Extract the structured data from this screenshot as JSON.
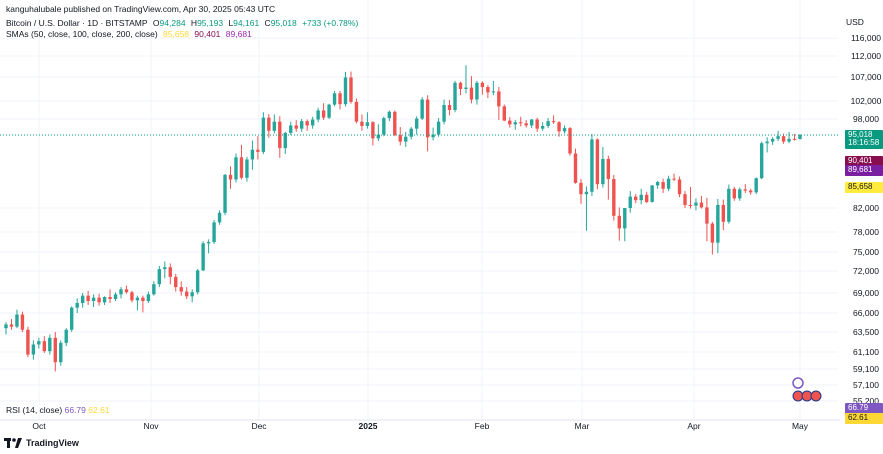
{
  "header": {
    "publisher_line": "kanguhalubale published on TradingView.com, Apr 30, 2025 05:43 UTC"
  },
  "legend": {
    "symbol_label": "Bitcoin / U.S. Dollar · 1D · BITSTAMP",
    "open_label": "O",
    "open_value": "94,284",
    "high_label": "H",
    "high_value": "95,193",
    "low_label": "L",
    "low_value": "94,161",
    "close_label": "C",
    "close_value": "95,018",
    "change": "+733 (+0.78%)",
    "sma_label": "SMAs (50, close, 100, close, 200, close)",
    "sma50_value": "85,658",
    "sma100_value": "90,401",
    "sma200_value": "89,681"
  },
  "rsi": {
    "label": "RSI (14, close)",
    "value1": "66.79",
    "value2": "62.61"
  },
  "axis": {
    "currency": "USD"
  },
  "price_badges": {
    "last_price": "95,018",
    "countdown": "18:16:58",
    "sma100": "90,401",
    "sma200": "89,681",
    "sma50": "85,658",
    "rsi1": "66.79",
    "rsi2": "62.61"
  },
  "footer": {
    "brand": "TradingView"
  },
  "colors": {
    "up": "#26a69a",
    "down": "#ef5350",
    "last_price_bg": "#089981",
    "sma100_bg": "#880e4f",
    "sma200_bg": "#7b1fa2",
    "sma50_bg": "#ffeb3b",
    "rsi1_bg": "#7e57c2",
    "rsi2_bg": "#fdd835"
  },
  "chart_data": {
    "type": "candlestick",
    "y_ticks": [
      116000,
      112000,
      107000,
      102000,
      98000,
      82000,
      78000,
      75000,
      72000,
      69000,
      66000,
      63500,
      61100,
      59100,
      57100,
      55200
    ],
    "x_labels": [
      "Oct",
      "Nov",
      "Dec",
      "2025",
      "Feb",
      "Mar",
      "Apr",
      "May"
    ],
    "candles": [
      [
        64000,
        64800,
        63200,
        64500
      ],
      [
        64500,
        65200,
        63800,
        64200
      ],
      [
        64200,
        66500,
        64000,
        65800
      ],
      [
        65800,
        66200,
        63500,
        63800
      ],
      [
        63800,
        64200,
        60500,
        60800
      ],
      [
        60800,
        62500,
        60200,
        62000
      ],
      [
        62000,
        62800,
        61500,
        62400
      ],
      [
        62400,
        63000,
        61000,
        61200
      ],
      [
        61200,
        63200,
        60800,
        62800
      ],
      [
        62800,
        63500,
        58800,
        59900
      ],
      [
        59900,
        62500,
        59500,
        62200
      ],
      [
        62200,
        64000,
        61800,
        63800
      ],
      [
        63800,
        67000,
        63500,
        66800
      ],
      [
        66800,
        68200,
        66000,
        67500
      ],
      [
        67500,
        69000,
        66800,
        68600
      ],
      [
        68600,
        69300,
        67200,
        67800
      ],
      [
        67800,
        68800,
        66900,
        68300
      ],
      [
        68300,
        68900,
        67100,
        67600
      ],
      [
        67600,
        68500,
        67200,
        68400
      ],
      [
        68400,
        69500,
        67500,
        68100
      ],
      [
        68100,
        69100,
        67800,
        68800
      ],
      [
        68800,
        69800,
        68200,
        69500
      ],
      [
        69500,
        70000,
        68900,
        69100
      ],
      [
        69100,
        69300,
        67600,
        67900
      ],
      [
        67900,
        68600,
        66400,
        68300
      ],
      [
        68300,
        68600,
        66100,
        67800
      ],
      [
        67800,
        69200,
        67500,
        68800
      ],
      [
        68800,
        70600,
        68600,
        70200
      ],
      [
        70200,
        72800,
        69800,
        72300
      ],
      [
        72300,
        73500,
        71000,
        72600
      ],
      [
        72600,
        73200,
        70200,
        71200
      ],
      [
        71200,
        71600,
        69200,
        69800
      ],
      [
        69800,
        70600,
        68600,
        69200
      ],
      [
        69200,
        69800,
        68100,
        68500
      ],
      [
        68500,
        69500,
        67600,
        69100
      ],
      [
        69100,
        72300,
        68800,
        72100
      ],
      [
        72100,
        76600,
        72000,
        76300
      ],
      [
        76300,
        76900,
        74800,
        76500
      ],
      [
        76500,
        80000,
        76200,
        79600
      ],
      [
        79600,
        81600,
        79200,
        81200
      ],
      [
        81200,
        88500,
        80800,
        88300
      ],
      [
        88300,
        89900,
        85200,
        87200
      ],
      [
        87200,
        91600,
        86500,
        90900
      ],
      [
        90900,
        93200,
        87200,
        87600
      ],
      [
        87600,
        91000,
        86700,
        90500
      ],
      [
        90500,
        94000,
        89500,
        92300
      ],
      [
        92300,
        94800,
        90500,
        91900
      ],
      [
        91900,
        99500,
        91500,
        98300
      ],
      [
        98300,
        99100,
        94500,
        95800
      ],
      [
        95800,
        99000,
        95300,
        97500
      ],
      [
        97500,
        98600,
        90800,
        92600
      ],
      [
        92600,
        95600,
        91500,
        95400
      ],
      [
        95400,
        97500,
        95000,
        96800
      ],
      [
        96800,
        97800,
        95600,
        96200
      ],
      [
        96200,
        98000,
        95600,
        97600
      ],
      [
        97600,
        97900,
        95800,
        96800
      ],
      [
        96800,
        98500,
        96200,
        97900
      ],
      [
        97900,
        100500,
        97400,
        99900
      ],
      [
        99900,
        101500,
        97800,
        98300
      ],
      [
        98300,
        101400,
        98000,
        101200
      ],
      [
        101200,
        104100,
        100800,
        103600
      ],
      [
        103600,
        104100,
        100100,
        101300
      ],
      [
        101300,
        108200,
        100800,
        106900
      ],
      [
        106900,
        108300,
        101400,
        101800
      ],
      [
        101800,
        102500,
        97200,
        97500
      ],
      [
        97500,
        99000,
        95800,
        96700
      ],
      [
        96700,
        99500,
        96200,
        97400
      ],
      [
        97400,
        97600,
        93100,
        94400
      ],
      [
        94400,
        97000,
        93900,
        95100
      ],
      [
        95100,
        98500,
        94800,
        98200
      ],
      [
        98200,
        99900,
        97600,
        99600
      ],
      [
        99600,
        99900,
        94800,
        95000
      ],
      [
        95000,
        96500,
        93100,
        93800
      ],
      [
        93800,
        95600,
        92800,
        94700
      ],
      [
        94700,
        96500,
        94200,
        96200
      ],
      [
        96200,
        98600,
        95100,
        98100
      ],
      [
        98100,
        102800,
        97800,
        102300
      ],
      [
        102300,
        103200,
        92000,
        94600
      ],
      [
        94600,
        96400,
        94000,
        95100
      ],
      [
        95100,
        98200,
        94700,
        97500
      ],
      [
        97500,
        102300,
        97000,
        101100
      ],
      [
        101100,
        102200,
        98800,
        100000
      ],
      [
        100000,
        106200,
        99500,
        105800
      ],
      [
        105800,
        106000,
        103200,
        104500
      ],
      [
        104500,
        109800,
        103600,
        104800
      ],
      [
        104800,
        107200,
        101500,
        102300
      ],
      [
        102300,
        106200,
        101200,
        105800
      ],
      [
        105800,
        106100,
        103300,
        104900
      ],
      [
        104900,
        105300,
        102600,
        103800
      ],
      [
        103800,
        106200,
        103200,
        104000
      ],
      [
        104000,
        104900,
        97800,
        100800
      ],
      [
        100800,
        101200,
        97600,
        97700
      ],
      [
        97700,
        98400,
        96400,
        97000
      ],
      [
        97000,
        97800,
        96000,
        97400
      ],
      [
        97400,
        98500,
        96600,
        97200
      ],
      [
        97200,
        97800,
        96400,
        96800
      ],
      [
        96800,
        98000,
        96300,
        97900
      ],
      [
        97900,
        98300,
        95600,
        96200
      ],
      [
        96200,
        97400,
        95800,
        96700
      ],
      [
        96700,
        98200,
        96300,
        97600
      ],
      [
        97600,
        98800,
        97100,
        97400
      ],
      [
        97400,
        97600,
        94700,
        95700
      ],
      [
        95700,
        96800,
        95300,
        96300
      ],
      [
        96300,
        96500,
        91200,
        91600
      ],
      [
        91600,
        92500,
        86200,
        86400
      ],
      [
        86400,
        87300,
        82700,
        84300
      ],
      [
        84300,
        85600,
        78200,
        84700
      ],
      [
        84700,
        95200,
        84000,
        94200
      ],
      [
        94200,
        94400,
        85100,
        86100
      ],
      [
        86100,
        92800,
        85400,
        90600
      ],
      [
        90600,
        91200,
        83400,
        87300
      ],
      [
        87300,
        88300,
        79900,
        80700
      ],
      [
        80700,
        82100,
        76700,
        78600
      ],
      [
        78600,
        82000,
        76600,
        82000
      ],
      [
        82000,
        84800,
        81200,
        83900
      ],
      [
        83900,
        84300,
        82800,
        83300
      ],
      [
        83300,
        85200,
        82600,
        84200
      ],
      [
        84200,
        84700,
        82800,
        83000
      ],
      [
        83000,
        85900,
        82900,
        85800
      ],
      [
        85800,
        86900,
        85200,
        86600
      ],
      [
        86600,
        87400,
        84500,
        85200
      ],
      [
        85200,
        88100,
        84800,
        87400
      ],
      [
        87400,
        88600,
        86800,
        87200
      ],
      [
        87200,
        87900,
        83800,
        84300
      ],
      [
        84300,
        84800,
        82000,
        82500
      ],
      [
        82500,
        85500,
        81900,
        82400
      ],
      [
        82400,
        83600,
        81600,
        82900
      ],
      [
        82900,
        84000,
        81900,
        82100
      ],
      [
        82100,
        83700,
        76600,
        79400
      ],
      [
        79400,
        79700,
        74600,
        76400
      ],
      [
        76400,
        83500,
        74800,
        82500
      ],
      [
        82500,
        83400,
        78300,
        79700
      ],
      [
        79700,
        86000,
        79400,
        85200
      ],
      [
        85200,
        85500,
        83200,
        83600
      ],
      [
        83600,
        85400,
        83200,
        85100
      ],
      [
        85100,
        86100,
        84500,
        84900
      ],
      [
        84900,
        85200,
        84200,
        84600
      ],
      [
        84600,
        87700,
        84300,
        87500
      ],
      [
        87500,
        93800,
        87300,
        93500
      ],
      [
        93500,
        94600,
        91800,
        93800
      ],
      [
        93800,
        94600,
        93200,
        94300
      ],
      [
        94300,
        95800,
        93900,
        94800
      ],
      [
        94800,
        95300,
        93400,
        93800
      ],
      [
        93800,
        95600,
        93500,
        94300
      ],
      [
        94300,
        95200,
        94000,
        94280
      ],
      [
        94284,
        95193,
        94161,
        95018
      ]
    ]
  }
}
